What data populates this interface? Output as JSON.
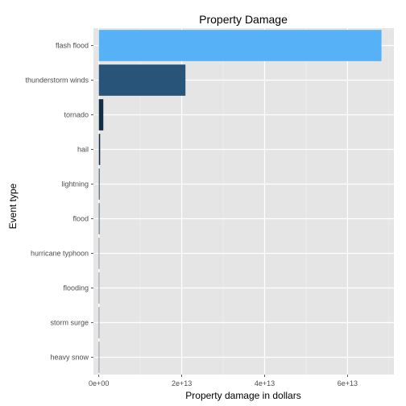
{
  "chart_data": {
    "type": "bar",
    "orientation": "horizontal",
    "title": "Property Damage",
    "xlabel": "Property damage in dollars",
    "ylabel": "Event type",
    "categories": [
      "flash flood",
      "thunderstorm winds",
      "tornado",
      "hail",
      "lightning",
      "flood",
      "hurricane typhoon",
      "flooding",
      "storm surge",
      "heavy snow"
    ],
    "values": [
      68200000000000,
      20900000000000,
      1080000000000,
      315000000000,
      172000000000,
      145000000000,
      69300000000,
      59200000000,
      43300000000,
      17900000000
    ],
    "xlim": [
      -1300000000000,
      71200000000000
    ],
    "xticks": [
      0,
      20000000000000,
      40000000000000,
      60000000000000
    ],
    "xtick_labels": [
      "0e+00",
      "2e+13",
      "4e+13",
      "6e+13"
    ],
    "fill_scale": {
      "low": "#132B43",
      "high": "#56B1F7"
    },
    "grid": true,
    "legend": "none",
    "panel_background": "#e5e5e5",
    "grid_color": "#ffffff"
  }
}
